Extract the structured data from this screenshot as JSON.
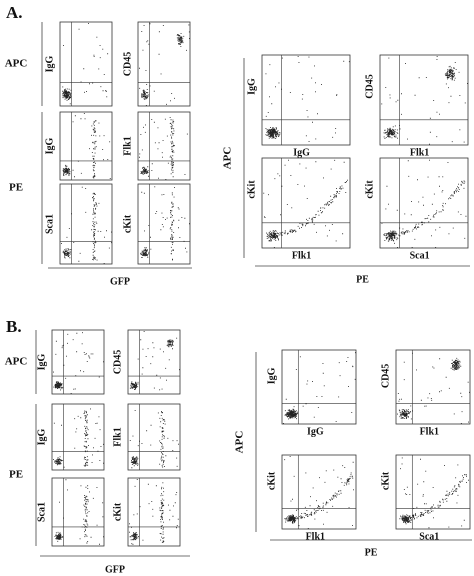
{
  "panels": [
    {
      "label": "A.",
      "left": {
        "groups": [
          {
            "label": "APC",
            "rows": [
              [
                "IgG",
                "CD45"
              ]
            ]
          },
          {
            "label": "PE",
            "rows": [
              [
                "IgG",
                "Flk1"
              ],
              [
                "Sca1",
                "cKit"
              ]
            ]
          }
        ],
        "x_label": "GFP"
      },
      "right": {
        "y_group": "APC",
        "x_group": "PE",
        "plots": [
          {
            "y": "IgG",
            "x": "IgG"
          },
          {
            "y": "CD45",
            "x": "Flk1"
          },
          {
            "y": "cKit",
            "x": "Flk1"
          },
          {
            "y": "cKit",
            "x": "Sca1"
          }
        ]
      }
    },
    {
      "label": "B.",
      "left": {
        "groups": [
          {
            "label": "APC",
            "rows": [
              [
                "IgG",
                "CD45"
              ]
            ]
          },
          {
            "label": "PE",
            "rows": [
              [
                "IgG",
                "Flk1"
              ],
              [
                "Sca1",
                "cKit"
              ]
            ]
          }
        ],
        "x_label": "GFP"
      },
      "right": {
        "y_group": "APC",
        "x_group": "PE",
        "plots": [
          {
            "y": "IgG",
            "x": "IgG"
          },
          {
            "y": "CD45",
            "x": "Flk1"
          },
          {
            "y": "cKit",
            "x": "Flk1"
          },
          {
            "y": "cKit",
            "x": "Sca1"
          }
        ]
      }
    }
  ]
}
